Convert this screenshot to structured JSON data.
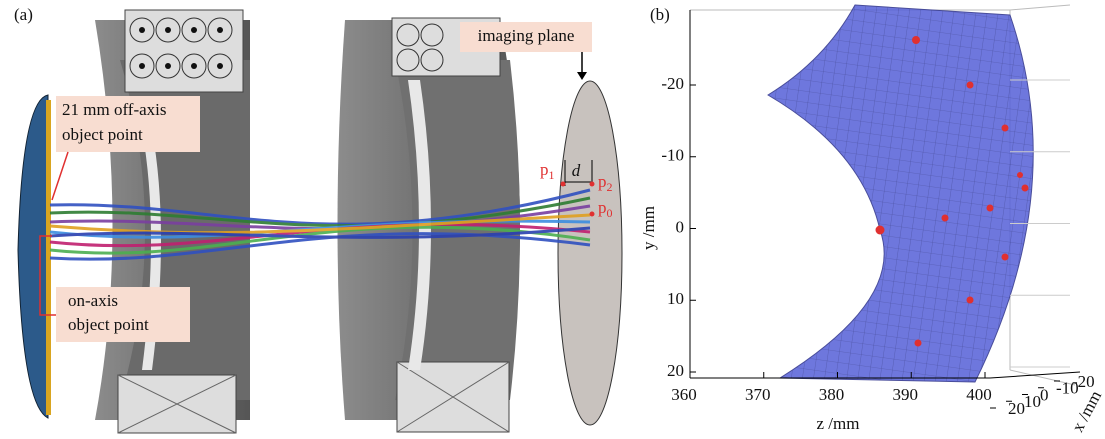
{
  "panel_a": {
    "label": "(a)",
    "imaging_plane": "imaging plane",
    "off_axis": [
      "21 mm off-axis",
      "object point"
    ],
    "on_axis": [
      "on-axis",
      "object point"
    ],
    "d": "d",
    "points": [
      {
        "letter": "p",
        "sub": "1"
      },
      {
        "letter": "p",
        "sub": "2"
      },
      {
        "letter": "p",
        "sub": "0"
      }
    ]
  },
  "panel_b": {
    "label": "(b)",
    "y_label": "y /mm",
    "z_label": "z /mm",
    "x_label": "x /mm",
    "yticks": [
      -20,
      -10,
      0,
      10,
      20
    ],
    "zticks": [
      360,
      370,
      380,
      390,
      400
    ],
    "xticks": [
      -20,
      -10,
      0,
      10,
      20
    ]
  }
}
